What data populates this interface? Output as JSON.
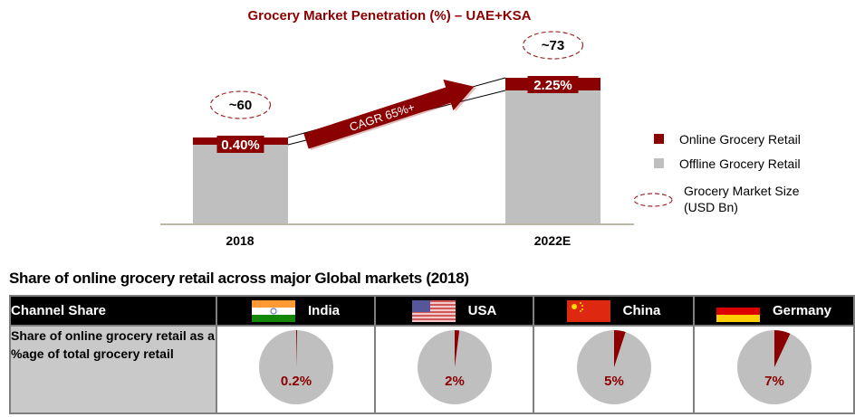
{
  "chart_data": [
    {
      "type": "bar",
      "stacked": true,
      "title": "Grocery Market Penetration  (%) – UAE+KSA",
      "categories": [
        "2018",
        "2022E"
      ],
      "series": [
        {
          "name": "Online Grocery Retail",
          "values": [
            0.4,
            2.25
          ],
          "labels": [
            "0.40%",
            "2.25%"
          ],
          "color": "#8b0000"
        },
        {
          "name": "Offline Grocery Retail",
          "values": [
            99.6,
            97.75
          ],
          "color": "#bfbfbf"
        }
      ],
      "market_size": {
        "name": "Grocery Market Size (USD Bn)",
        "values": [
          60,
          73
        ],
        "labels": [
          "~60",
          "~73"
        ]
      },
      "annotation": "CAGR 65%+",
      "legend": [
        "Online Grocery Retail",
        "Offline Grocery Retail",
        "Grocery Market Size",
        "(USD Bn)"
      ],
      "legend_position": "right",
      "grid": false
    },
    {
      "type": "pie",
      "title": "Share of online grocery retail across major Global markets (2018)",
      "categories": [
        "India",
        "USA",
        "China",
        "Germany"
      ],
      "values": [
        0.2,
        2,
        5,
        7
      ],
      "labels": [
        "0.2%",
        "2%",
        "5%",
        "7%"
      ]
    }
  ],
  "table": {
    "header_first": "Channel  Share",
    "row_label": "Share of online grocery retail as a %age of total grocery retail",
    "countries": [
      {
        "name": "India",
        "flag": "india-flag",
        "value": 0.2,
        "label": "0.2%"
      },
      {
        "name": "USA",
        "flag": "usa-flag",
        "value": 2,
        "label": "2%"
      },
      {
        "name": "China",
        "flag": "china-flag",
        "value": 5,
        "label": "5%"
      },
      {
        "name": "Germany",
        "flag": "germany-flag",
        "value": 7,
        "label": "7%"
      }
    ]
  },
  "colors": {
    "online": "#8b0000",
    "offline": "#bfbfbf",
    "axis": "#a6a28a"
  }
}
